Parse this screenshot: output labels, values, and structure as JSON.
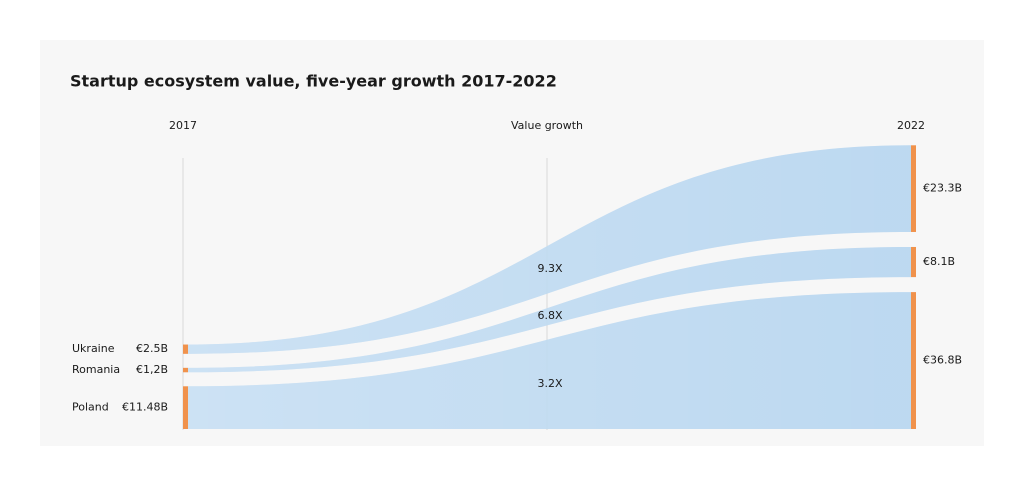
{
  "chart_data": {
    "type": "sankey",
    "title": "Startup ecosystem value, five-year growth 2017-2022",
    "categories": [
      "Ukraine",
      "Romania",
      "Poland"
    ],
    "series": [
      {
        "name": "2017",
        "values": [
          2.5,
          1.2,
          11.48
        ],
        "value_labels": [
          "€2.5B",
          "€1,2B",
          "€11.48B"
        ]
      },
      {
        "name": "2022",
        "values": [
          23.3,
          8.1,
          36.8
        ],
        "value_labels": [
          "€23.3B",
          "€8.1B",
          "€36.8B"
        ]
      }
    ],
    "growth": {
      "name": "Value growth",
      "values": [
        9.3,
        6.8,
        3.2
      ],
      "value_labels": [
        "9.3X",
        "6.8X",
        "3.2X"
      ]
    },
    "color": "#a8cdec",
    "node_color": "#f0924c"
  }
}
